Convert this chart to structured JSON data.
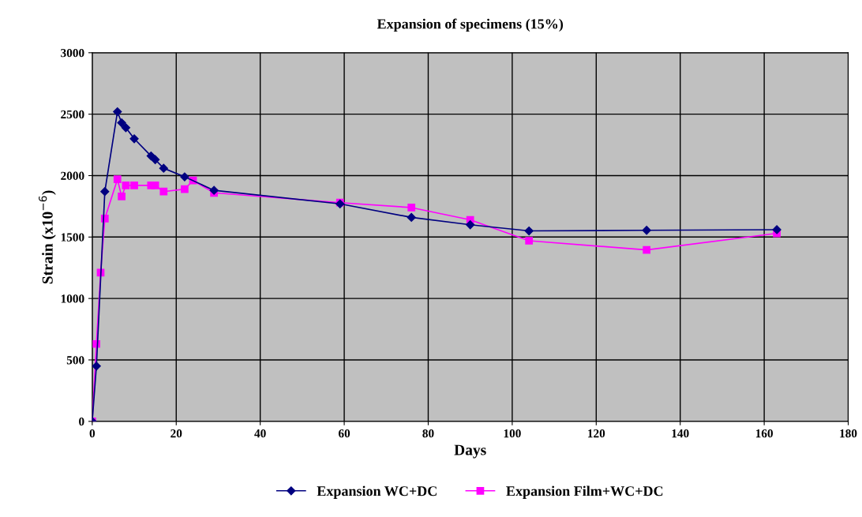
{
  "chart_data": {
    "type": "line",
    "title": "Expansion of specimens (15%)",
    "xlabel": "Days",
    "ylabel": "Strain (x10$^{−6}$)",
    "xlim": [
      0,
      180
    ],
    "xticks": [
      0,
      20,
      40,
      60,
      80,
      100,
      120,
      140,
      160,
      180
    ],
    "ylim": [
      0,
      3000
    ],
    "yticks": [
      0,
      500,
      1000,
      1500,
      2000,
      2500,
      3000
    ],
    "grid": true,
    "legend": "bottom",
    "line_style": "solid",
    "series": [
      {
        "name": "Expansion WC+DC",
        "color": "#000080",
        "marker": "diamond",
        "x": [
          0,
          1,
          3,
          6,
          7,
          8,
          10,
          14,
          15,
          17,
          22,
          29,
          59,
          76,
          90,
          104,
          132,
          163
        ],
        "values": [
          0,
          450,
          1870,
          2520,
          2430,
          2390,
          2300,
          2160,
          2130,
          2060,
          1990,
          1880,
          1770,
          1660,
          1600,
          1550,
          1555,
          1560
        ]
      },
      {
        "name": "Expansion Film+WC+DC",
        "color": "#ff00ff",
        "marker": "square",
        "x": [
          0,
          1,
          2,
          3,
          6,
          7,
          8,
          10,
          14,
          15,
          17,
          22,
          24,
          29,
          59,
          76,
          90,
          104,
          132,
          163
        ],
        "values": [
          0,
          630,
          1210,
          1650,
          1970,
          1830,
          1920,
          1920,
          1920,
          1920,
          1870,
          1890,
          1960,
          1860,
          1780,
          1740,
          1640,
          1470,
          1395,
          1530
        ]
      }
    ]
  }
}
